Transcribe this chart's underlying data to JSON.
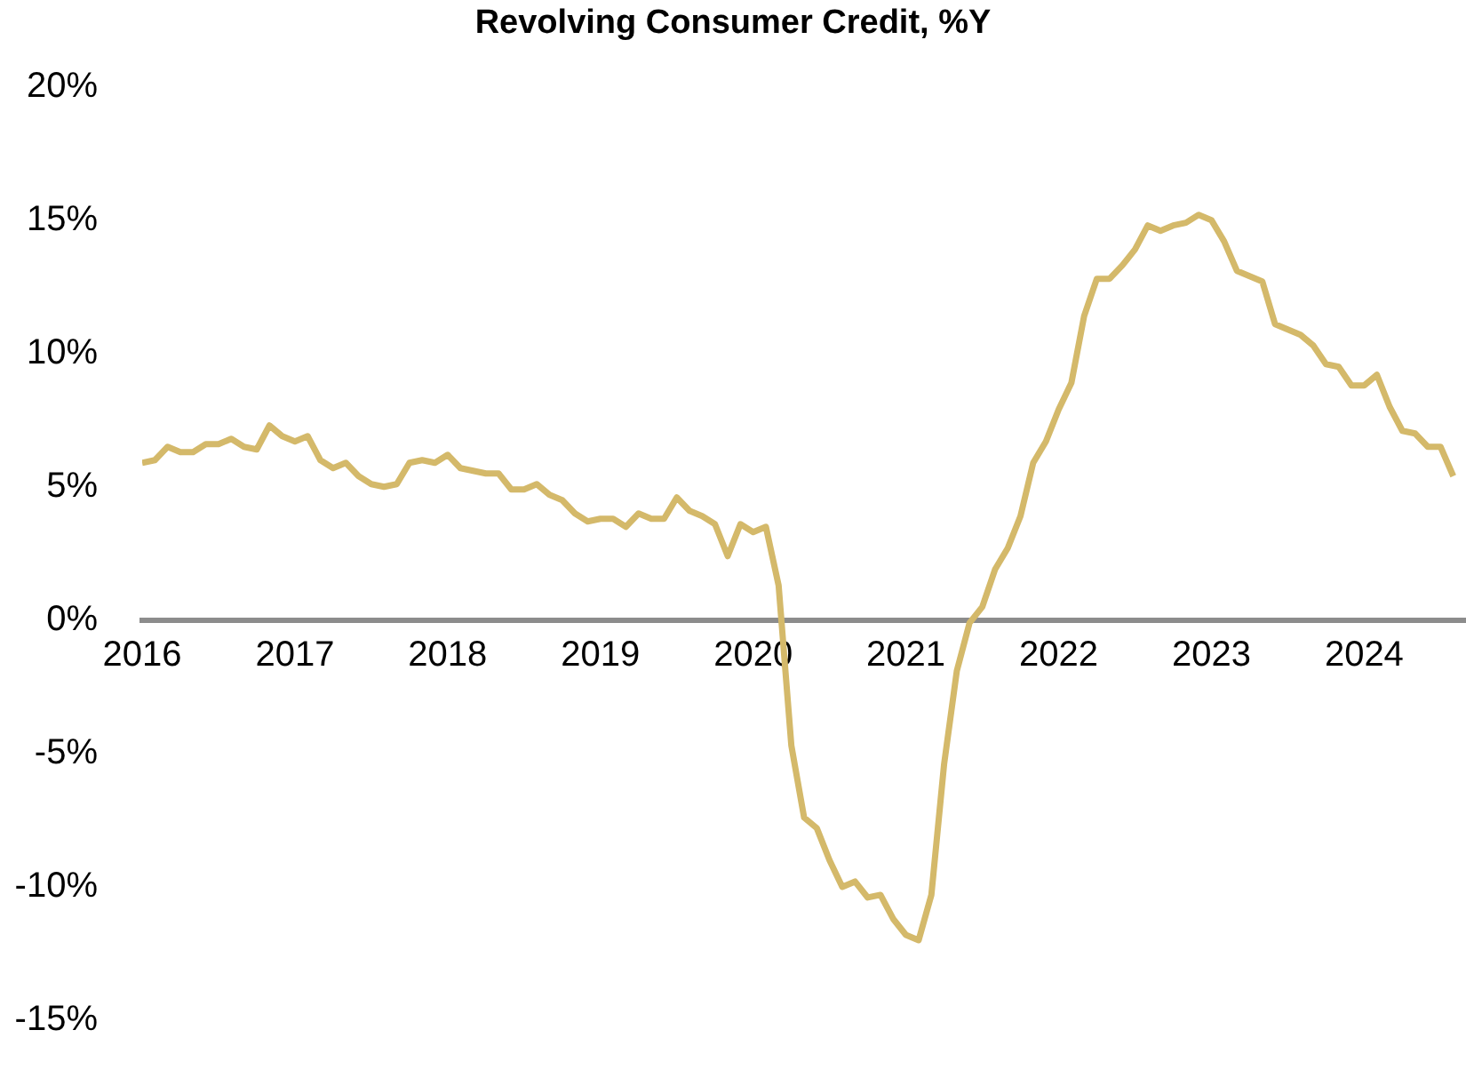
{
  "chart_data": {
    "type": "line",
    "title": "Revolving Consumer Credit, %Y",
    "x": [
      "2016-01",
      "2016-02",
      "2016-03",
      "2016-04",
      "2016-05",
      "2016-06",
      "2016-07",
      "2016-08",
      "2016-09",
      "2016-10",
      "2016-11",
      "2016-12",
      "2017-01",
      "2017-02",
      "2017-03",
      "2017-04",
      "2017-05",
      "2017-06",
      "2017-07",
      "2017-08",
      "2017-09",
      "2017-10",
      "2017-11",
      "2017-12",
      "2018-01",
      "2018-02",
      "2018-03",
      "2018-04",
      "2018-05",
      "2018-06",
      "2018-07",
      "2018-08",
      "2018-09",
      "2018-10",
      "2018-11",
      "2018-12",
      "2019-01",
      "2019-02",
      "2019-03",
      "2019-04",
      "2019-05",
      "2019-06",
      "2019-07",
      "2019-08",
      "2019-09",
      "2019-10",
      "2019-11",
      "2019-12",
      "2020-01",
      "2020-02",
      "2020-03",
      "2020-04",
      "2020-05",
      "2020-06",
      "2020-07",
      "2020-08",
      "2020-09",
      "2020-10",
      "2020-11",
      "2020-12",
      "2021-01",
      "2021-02",
      "2021-03",
      "2021-04",
      "2021-05",
      "2021-06",
      "2021-07",
      "2021-08",
      "2021-09",
      "2021-10",
      "2021-11",
      "2021-12",
      "2022-01",
      "2022-02",
      "2022-03",
      "2022-04",
      "2022-05",
      "2022-06",
      "2022-07",
      "2022-08",
      "2022-09",
      "2022-10",
      "2022-11",
      "2022-12",
      "2023-01",
      "2023-02",
      "2023-03",
      "2023-04",
      "2023-05",
      "2023-06",
      "2023-07",
      "2023-08",
      "2023-09",
      "2023-10",
      "2023-11",
      "2023-12",
      "2024-01",
      "2024-02",
      "2024-03",
      "2024-04",
      "2024-05",
      "2024-06",
      "2024-07",
      "2024-08"
    ],
    "series": [
      {
        "color": "#d4b96a",
        "values": [
          5.9,
          6.0,
          6.5,
          6.3,
          6.3,
          6.6,
          6.6,
          6.8,
          6.5,
          6.4,
          7.3,
          6.9,
          6.7,
          6.9,
          6.0,
          5.7,
          5.9,
          5.4,
          5.1,
          5.0,
          5.1,
          5.9,
          6.0,
          5.9,
          6.2,
          5.7,
          5.6,
          5.5,
          5.5,
          4.9,
          4.9,
          5.1,
          4.7,
          4.5,
          4.0,
          3.7,
          3.8,
          3.8,
          3.5,
          4.0,
          3.8,
          3.8,
          4.6,
          4.1,
          3.9,
          3.6,
          2.4,
          3.6,
          3.3,
          3.5,
          1.3,
          -4.7,
          -7.4,
          -7.8,
          -9.0,
          -10.0,
          -9.8,
          -10.4,
          -10.3,
          -11.2,
          -11.8,
          -12.0,
          -10.3,
          -5.4,
          -1.9,
          -0.1,
          0.5,
          1.9,
          2.7,
          3.9,
          5.9,
          6.7,
          7.9,
          8.9,
          11.4,
          12.8,
          12.8,
          13.3,
          13.9,
          14.8,
          14.6,
          14.8,
          14.9,
          15.2,
          15.0,
          14.2,
          13.1,
          12.9,
          12.7,
          11.1,
          10.9,
          10.7,
          10.3,
          9.6,
          9.5,
          8.8,
          8.8,
          9.2,
          8.0,
          7.1,
          7.0,
          6.5,
          6.5,
          5.4
        ]
      }
    ],
    "xlim": [
      "2016-01",
      "2024-09"
    ],
    "xticks": [
      "2016",
      "2017",
      "2018",
      "2019",
      "2020",
      "2021",
      "2022",
      "2023",
      "2024"
    ],
    "ylim": [
      -15,
      20
    ],
    "yticks": [
      {
        "value": -15,
        "label": "-15%"
      },
      {
        "value": -10,
        "label": "-10%"
      },
      {
        "value": -5,
        "label": "-5%"
      },
      {
        "value": 0,
        "label": "0%"
      },
      {
        "value": 5,
        "label": "5%"
      },
      {
        "value": 10,
        "label": "10%"
      },
      {
        "value": 15,
        "label": "15%"
      },
      {
        "value": 20,
        "label": "20%"
      }
    ],
    "grid": false,
    "legend": false,
    "marker": "none",
    "line_style": "solid"
  }
}
